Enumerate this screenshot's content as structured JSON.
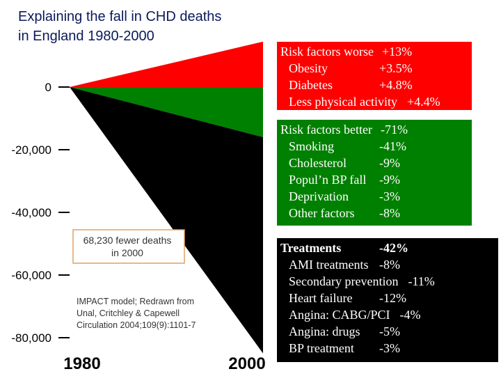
{
  "chart_data": {
    "type": "wedge",
    "title": [
      "Explaining the fall in CHD deaths",
      "in England 1980-2000"
    ],
    "categories": [
      "1980",
      "2000"
    ],
    "ylim": [
      -80000,
      0
    ],
    "yticks": [
      {
        "value": 0,
        "label": "0"
      },
      {
        "value": -20000,
        "label": "-20,000"
      },
      {
        "value": -40000,
        "label": "-40,000"
      },
      {
        "value": -60000,
        "label": "-60,000"
      },
      {
        "value": -80000,
        "label": "-80,000"
      }
    ],
    "series": [
      {
        "color": "#ff0000",
        "values": [
          0,
          14500
        ]
      },
      {
        "color": "#008000",
        "values": [
          0,
          -16000
        ]
      },
      {
        "color": "#000000",
        "values": [
          0,
          -85000
        ]
      }
    ],
    "annotations": [
      "68,230 fewer deaths",
      "in 2000"
    ],
    "source": [
      "IMPACT model; Redrawn from",
      "Unal, Critchley & Capewell",
      "Circulation 2004;109(9):1101-7"
    ],
    "panels": [
      {
        "color": "#ff0000",
        "title": "Risk factors worse",
        "title_value": "+13%",
        "items": [
          {
            "label": "Obesity",
            "value": "+3.5%"
          },
          {
            "label": "Diabetes",
            "value": "+4.8%"
          },
          {
            "label": "Less physical activity",
            "value": "+4.4%"
          }
        ]
      },
      {
        "color": "#008000",
        "title": "Risk factors better",
        "title_value": "-71%",
        "items": [
          {
            "label": "Smoking",
            "value": "-41%"
          },
          {
            "label": "Cholesterol",
            "value": "-9%"
          },
          {
            "label": "Popul’n BP fall",
            "value": "-9%"
          },
          {
            "label": "Deprivation",
            "value": "-3%"
          },
          {
            "label": "Other factors",
            "value": "-8%"
          }
        ]
      },
      {
        "color": "#000000",
        "title": "Treatments",
        "title_value": "-42%",
        "items": [
          {
            "label": "AMI treatments",
            "value": "-8%"
          },
          {
            "label": "Secondary prevention",
            "value": "-11%"
          },
          {
            "label": "Heart failure",
            "value": "-12%"
          },
          {
            "label": "Angina: CABG/PCI",
            "value": "-4%"
          },
          {
            "label": "Angina: drugs",
            "value": "-5%"
          },
          {
            "label": "BP treatment",
            "value": "-3%"
          }
        ]
      }
    ]
  }
}
